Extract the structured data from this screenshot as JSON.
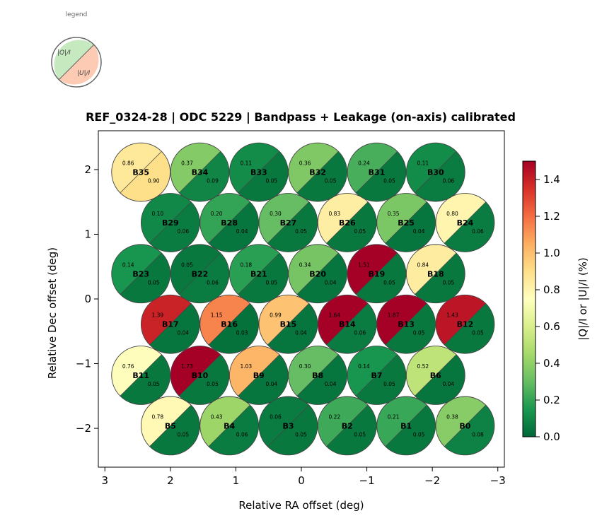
{
  "chart_data": {
    "type": "scatter",
    "title": "REF_0324-28  |  ODC 5229  |  Bandpass + Leakage (on-axis) calibrated",
    "xlabel": "Relative RA offset (deg)",
    "ylabel": "Relative Dec offset (deg)",
    "xlim": [
      3.1,
      -3.1
    ],
    "ylim": [
      -2.6,
      2.6
    ],
    "xticks": [
      3,
      2,
      1,
      0,
      -1,
      -2,
      -3
    ],
    "xtick_labels": [
      "3",
      "2",
      "1",
      "0",
      "−1",
      "−2",
      "−3"
    ],
    "yticks": [
      2,
      1,
      0,
      -1,
      -2
    ],
    "ytick_labels": [
      "2",
      "1",
      "0",
      "−1",
      "−2"
    ],
    "colorbar": {
      "label": "|Q|/I  or  |U|/I  (%)",
      "range": [
        0.0,
        1.5
      ],
      "ticks": [
        0.0,
        0.2,
        0.4,
        0.6,
        0.8,
        1.0,
        1.2,
        1.4
      ],
      "tick_labels": [
        "0.0",
        "0.2",
        "0.4",
        "0.6",
        "0.8",
        "1.0",
        "1.2",
        "1.4"
      ],
      "colormap": "RdYlGn_r"
    },
    "legend": {
      "title": "legend",
      "upper_label": "|Q|/I",
      "lower_label": "|U|/I"
    },
    "beam_radius": 0.45,
    "beams": [
      {
        "name": "B0",
        "x": -2.5,
        "y": -1.96,
        "q": "0.38",
        "u": "0.08"
      },
      {
        "name": "B1",
        "x": -1.6,
        "y": -1.96,
        "q": "0.21",
        "u": "0.05"
      },
      {
        "name": "B2",
        "x": -0.7,
        "y": -1.96,
        "q": "0.22",
        "u": "0.05"
      },
      {
        "name": "B3",
        "x": 0.2,
        "y": -1.96,
        "q": "0.06",
        "u": "0.05"
      },
      {
        "name": "B4",
        "x": 1.1,
        "y": -1.96,
        "q": "0.43",
        "u": "0.06"
      },
      {
        "name": "B5",
        "x": 2.0,
        "y": -1.96,
        "q": "0.78",
        "u": "0.05"
      },
      {
        "name": "B6",
        "x": -2.05,
        "y": -1.18,
        "q": "0.52",
        "u": "0.04"
      },
      {
        "name": "B7",
        "x": -1.15,
        "y": -1.18,
        "q": "0.14",
        "u": "0.05"
      },
      {
        "name": "B8",
        "x": -0.25,
        "y": -1.18,
        "q": "0.30",
        "u": "0.04"
      },
      {
        "name": "B9",
        "x": 0.65,
        "y": -1.18,
        "q": "1.03",
        "u": "0.04"
      },
      {
        "name": "B10",
        "x": 1.55,
        "y": -1.18,
        "q": "1.73",
        "u": "0.05"
      },
      {
        "name": "B11",
        "x": 2.45,
        "y": -1.18,
        "q": "0.76",
        "u": "0.05"
      },
      {
        "name": "B12",
        "x": -2.5,
        "y": -0.39,
        "q": "1.43",
        "u": "0.05"
      },
      {
        "name": "B13",
        "x": -1.6,
        "y": -0.39,
        "q": "1.87",
        "u": "0.05"
      },
      {
        "name": "B14",
        "x": -0.7,
        "y": -0.39,
        "q": "1.64",
        "u": "0.06"
      },
      {
        "name": "B15",
        "x": 0.2,
        "y": -0.39,
        "q": "0.99",
        "u": "0.04"
      },
      {
        "name": "B16",
        "x": 1.1,
        "y": -0.39,
        "q": "1.15",
        "u": "0.03"
      },
      {
        "name": "B17",
        "x": 2.0,
        "y": -0.39,
        "q": "1.39",
        "u": "0.04"
      },
      {
        "name": "B18",
        "x": -2.05,
        "y": 0.39,
        "q": "0.84",
        "u": "0.05"
      },
      {
        "name": "B19",
        "x": -1.15,
        "y": 0.39,
        "q": "1.51",
        "u": "0.05"
      },
      {
        "name": "B20",
        "x": -0.25,
        "y": 0.39,
        "q": "0.34",
        "u": "0.04"
      },
      {
        "name": "B21",
        "x": 0.65,
        "y": 0.39,
        "q": "0.18",
        "u": "0.05"
      },
      {
        "name": "B22",
        "x": 1.55,
        "y": 0.39,
        "q": "0.05",
        "u": "0.06"
      },
      {
        "name": "B23",
        "x": 2.45,
        "y": 0.39,
        "q": "0.14",
        "u": "0.05"
      },
      {
        "name": "B24",
        "x": -2.5,
        "y": 1.18,
        "q": "0.80",
        "u": "0.06"
      },
      {
        "name": "B25",
        "x": -1.6,
        "y": 1.18,
        "q": "0.35",
        "u": "0.04"
      },
      {
        "name": "B26",
        "x": -0.7,
        "y": 1.18,
        "q": "0.83",
        "u": "0.05"
      },
      {
        "name": "B27",
        "x": 0.2,
        "y": 1.18,
        "q": "0.30",
        "u": "0.05"
      },
      {
        "name": "B28",
        "x": 1.1,
        "y": 1.18,
        "q": "0.20",
        "u": "0.04"
      },
      {
        "name": "B29",
        "x": 2.0,
        "y": 1.18,
        "q": "0.10",
        "u": "0.06"
      },
      {
        "name": "B30",
        "x": -2.05,
        "y": 1.96,
        "q": "0.11",
        "u": "0.06"
      },
      {
        "name": "B31",
        "x": -1.15,
        "y": 1.96,
        "q": "0.24",
        "u": "0.05"
      },
      {
        "name": "B32",
        "x": -0.25,
        "y": 1.96,
        "q": "0.36",
        "u": "0.05"
      },
      {
        "name": "B33",
        "x": 0.65,
        "y": 1.96,
        "q": "0.11",
        "u": "0.05"
      },
      {
        "name": "B34",
        "x": 1.55,
        "y": 1.96,
        "q": "0.37",
        "u": "0.09"
      },
      {
        "name": "B35",
        "x": 2.45,
        "y": 1.96,
        "q": "0.86",
        "u": "0.90"
      }
    ]
  }
}
